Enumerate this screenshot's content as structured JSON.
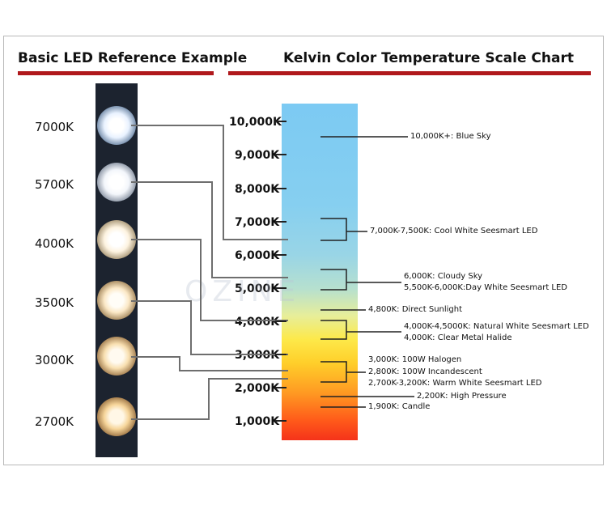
{
  "left_title": "Basic LED Reference Example",
  "right_title": "Kelvin Color Temperature Scale Chart",
  "led_labels": [
    "7000K",
    "5700K",
    "4000K",
    "3500K",
    "3000K",
    "2700K"
  ],
  "scale_ticks": [
    "10,000K",
    "9,000K",
    "8,000K",
    "7,000K",
    "6,000K",
    "5,000K",
    "4,000K",
    "3,000K",
    "2,000K",
    "1,000K"
  ],
  "annotations": {
    "blue_sky": "10,000K+: Blue Sky",
    "cool_white": "7,000K-7,500K: Cool White Seesmart LED",
    "cloudy": "6,000K: Cloudy Sky",
    "day_white": "5,500K-6,000K:Day White Seesmart LED",
    "direct_sun": "4,800K: Direct Sunlight",
    "natural_white": "4,000K-4,5000K: Natural White Seesmart LED",
    "metal_halide": "4,000K: Clear Metal Halide",
    "halogen": "3,000K: 100W Halogen",
    "incandescent": "2,800K: 100W Incandescent",
    "warm_white": "2,700K-3,200K: Warm White Seesmart LED",
    "high_pressure": "2,200K: High Pressure",
    "candle": "1,900K: Candle"
  },
  "watermark": "OZINE",
  "colors": {
    "accent": "#b0181c",
    "strip": "#1c232f",
    "line": "#6e6e6e"
  }
}
